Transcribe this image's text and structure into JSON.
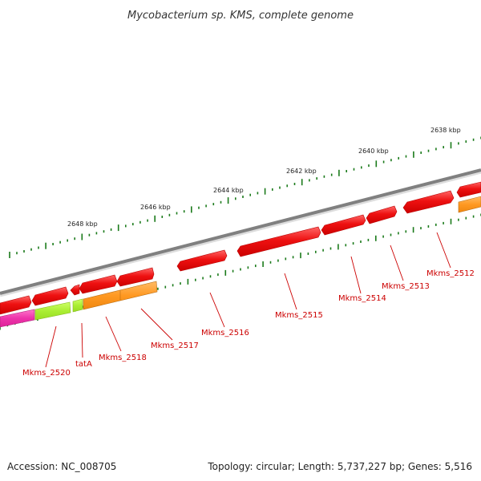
{
  "title": "Mycobacterium sp. KMS, complete genome",
  "accession_text": "Accession: NC_008705",
  "summary_text": "Topology: circular; Length: 5,737,227 bp; Genes: 5,516",
  "colors": {
    "backbone": "#808080",
    "tick": "#1a7a1a",
    "gene_red": "#ee1111",
    "gene_red_shadow": "#b80000",
    "gene_orange": "#ff9922",
    "gene_orange_shadow": "#b86a10",
    "gene_lime": "#aaee33",
    "gene_magenta": "#ee33aa",
    "label": "#cc0000"
  },
  "scale_labels": [
    "2638 kbp",
    "2640 kbp",
    "2642 kbp",
    "2644 kbp",
    "2646 kbp",
    "2648 kbp"
  ],
  "gene_labels": [
    "Mkms_2512",
    "Mkms_2513",
    "Mkms_2514",
    "Mkms_2515",
    "Mkms_2516",
    "Mkms_2517",
    "Mkms_2518",
    "tatA",
    "Mkms_2520"
  ]
}
